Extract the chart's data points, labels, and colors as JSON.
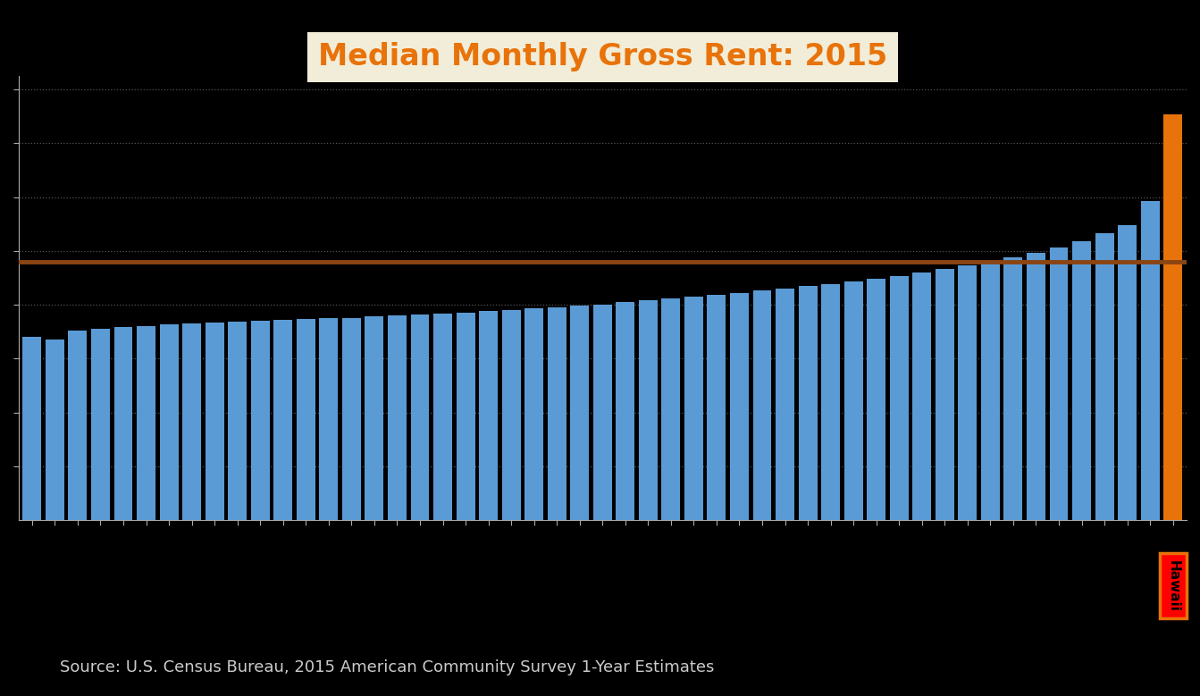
{
  "title": "Median Monthly Gross Rent: 2015",
  "source_text": "Source: U.S. Census Bureau, 2015 American Community Survey 1-Year Estimates",
  "background_color": "#000000",
  "plot_bg_color": "#000000",
  "bar_color": "#5B9BD5",
  "highlight_bar_color": "#E8730A",
  "reference_line_color": "#8B4513",
  "reference_line_value": 960,
  "title_color": "#E8730A",
  "title_box_color": "#F2EDD8",
  "grid_color": "#AAAAAA",
  "tick_color": "#AAAAAA",
  "source_color": "#CCCCCC",
  "ylim": [
    0,
    1650
  ],
  "ytick_values": [
    200,
    400,
    600,
    800,
    1000,
    1200,
    1400,
    1600
  ],
  "values": [
    681,
    672,
    705,
    712,
    718,
    722,
    726,
    730,
    734,
    737,
    740,
    743,
    746,
    749,
    752,
    756,
    759,
    763,
    767,
    771,
    776,
    781,
    786,
    791,
    797,
    802,
    810,
    817,
    823,
    831,
    838,
    845,
    853,
    861,
    869,
    878,
    887,
    897,
    907,
    920,
    933,
    947,
    963,
    978,
    994,
    1014,
    1035,
    1065,
    1095,
    1185,
    1507
  ],
  "highlight_index": 50,
  "highlight_label": "Hawaii",
  "highlight_label_color": "#000000",
  "highlight_label_bg": "#FF0000",
  "highlight_label_border": "#E8730A",
  "bar_width": 0.82,
  "title_fontsize": 24,
  "source_fontsize": 13
}
